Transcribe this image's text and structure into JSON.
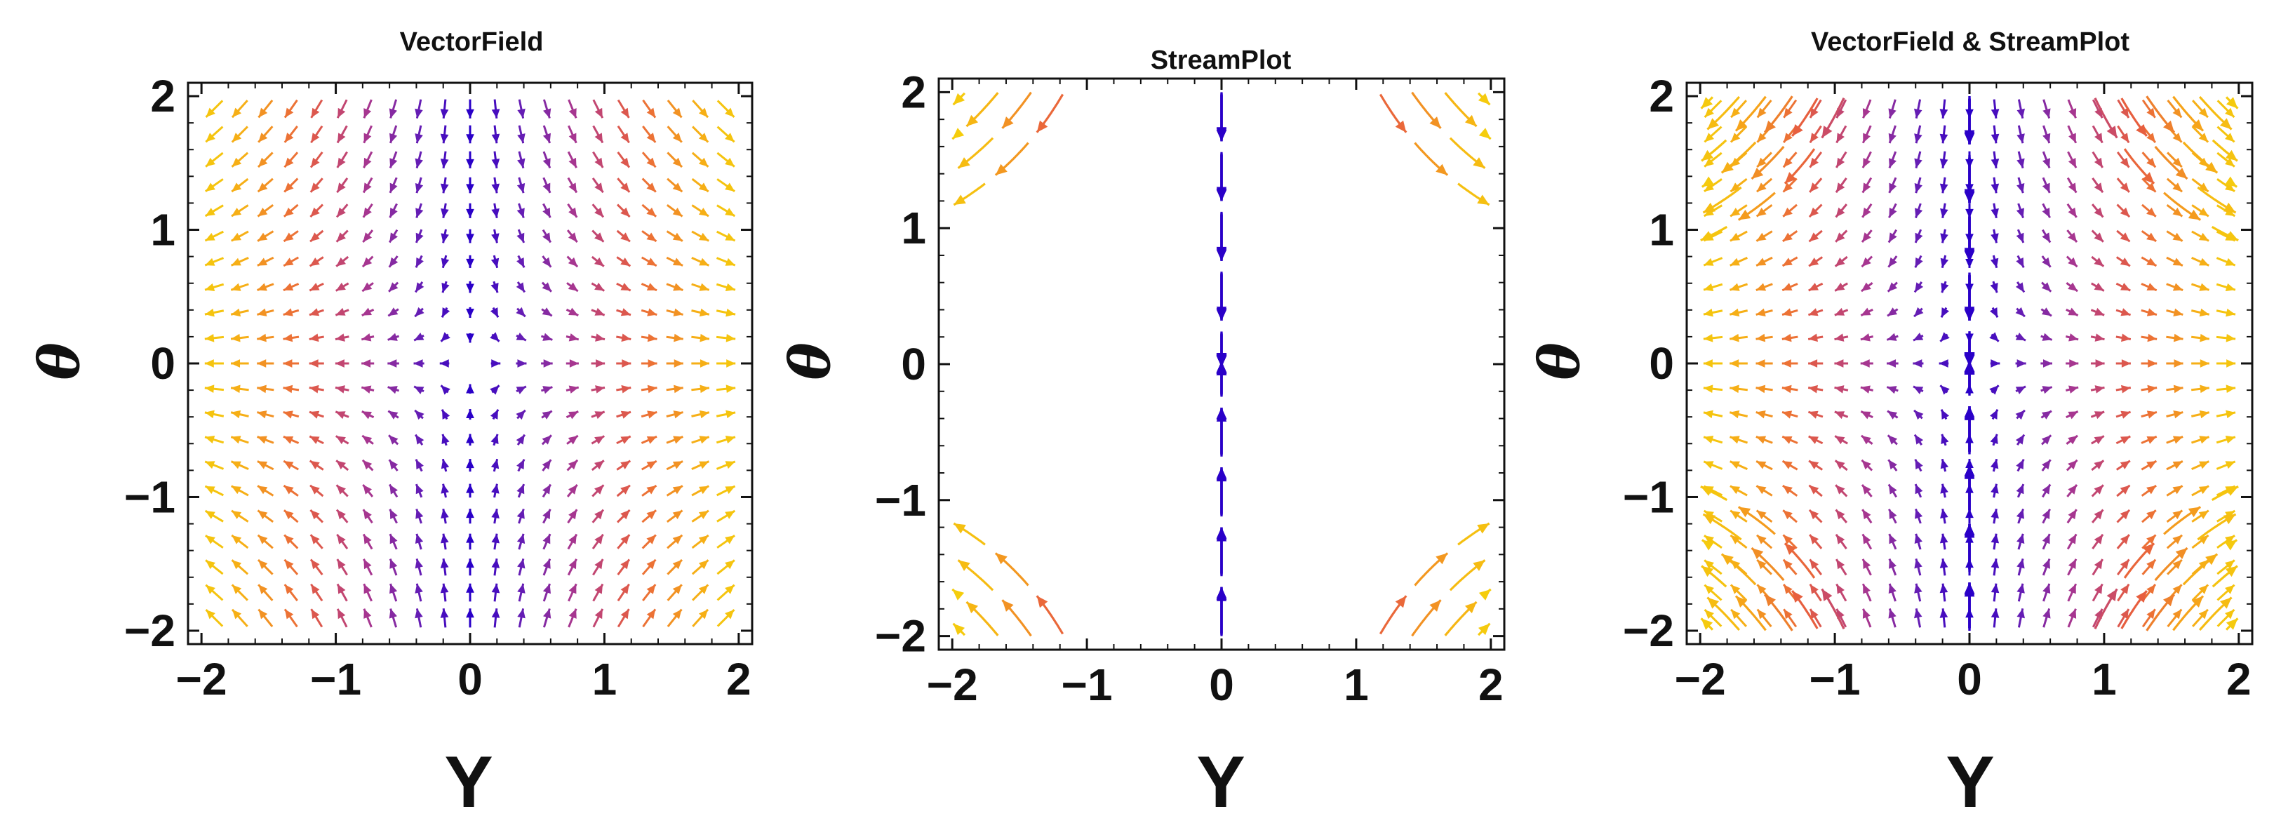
{
  "figure": {
    "panel_titles": [
      "VectorField",
      "StreamPlot",
      "VectorField & StreamPlot"
    ]
  },
  "chart_data": [
    {
      "type": "vector_field",
      "title": "VectorField",
      "xlabel": "Y",
      "ylabel": "θ",
      "xlim": [
        -2.1,
        2.1
      ],
      "ylim": [
        -2.1,
        2.1
      ],
      "xticks": [
        -2,
        -1,
        0,
        1,
        2
      ],
      "yticks": [
        -2,
        -1,
        0,
        1,
        2
      ],
      "tick_labels_x": [
        "−2",
        "−1",
        "0",
        "1",
        "2"
      ],
      "tick_labels_y": [
        "−2",
        "−1",
        "0",
        "1",
        "2"
      ],
      "field": "saddle at (0,0): dY/dt = Y, dθ/dt = −θ",
      "grid_points": 21,
      "colormap": [
        "#2a00c8",
        "#6a1fb2",
        "#b03a8a",
        "#e8603e",
        "#f6a619",
        "#f5d50a"
      ],
      "grid": false,
      "legend": "none"
    },
    {
      "type": "stream",
      "title": "StreamPlot",
      "xlabel": "Y",
      "ylabel": "θ",
      "xlim": [
        -2.1,
        2.1
      ],
      "ylim": [
        -2.1,
        2.1
      ],
      "xticks": [
        -2,
        -1,
        0,
        1,
        2
      ],
      "yticks": [
        -2,
        -1,
        0,
        1,
        2
      ],
      "tick_labels_x": [
        "−2",
        "−1",
        "0",
        "1",
        "2"
      ],
      "tick_labels_y": [
        "−2",
        "−1",
        "0",
        "1",
        "2"
      ],
      "field": "saddle at (0,0): dY/dt = Y, dθ/dt = −θ",
      "colormap": [
        "#2a00c8",
        "#6a1fb2",
        "#b03a8a",
        "#e8603e",
        "#f6a619",
        "#f5d50a"
      ],
      "grid": false,
      "legend": "none"
    },
    {
      "type": "vector_field_and_stream",
      "title": "VectorField & StreamPlot",
      "xlabel": "Y",
      "ylabel": "θ",
      "xlim": [
        -2.1,
        2.1
      ],
      "ylim": [
        -2.1,
        2.1
      ],
      "xticks": [
        -2,
        -1,
        0,
        1,
        2
      ],
      "yticks": [
        -2,
        -1,
        0,
        1,
        2
      ],
      "tick_labels_x": [
        "−2",
        "−1",
        "0",
        "1",
        "2"
      ],
      "tick_labels_y": [
        "−2",
        "−1",
        "0",
        "1",
        "2"
      ],
      "field": "saddle at (0,0): dY/dt = Y, dθ/dt = −θ",
      "grid_points": 21,
      "colormap": [
        "#2a00c8",
        "#6a1fb2",
        "#b03a8a",
        "#e8603e",
        "#f6a619",
        "#f5d50a"
      ],
      "grid": false,
      "legend": "none"
    }
  ]
}
